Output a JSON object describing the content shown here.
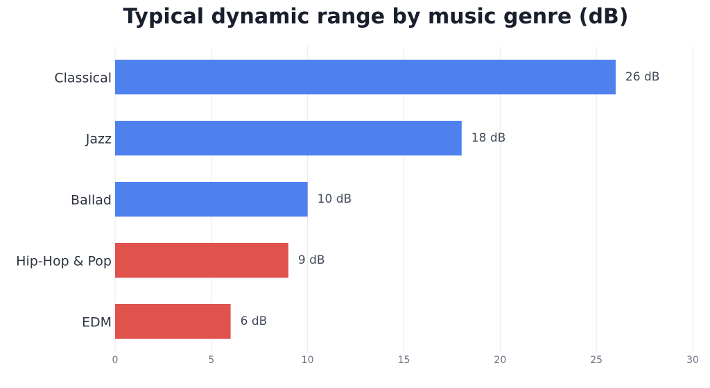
{
  "chart_data": {
    "type": "barh",
    "title": "Typical dynamic range by music genre (dB)",
    "categories": [
      "Classical",
      "Jazz",
      "Ballad",
      "Hip-Hop & Pop",
      "EDM"
    ],
    "values": [
      26,
      18,
      10,
      9,
      6
    ],
    "value_labels": [
      "26 dB",
      "18 dB",
      "10 dB",
      "9 dB",
      "6 dB"
    ],
    "colors": [
      "#4f81ee",
      "#4f81ee",
      "#4f81ee",
      "#e0524c",
      "#e0524c"
    ],
    "xlim": [
      0,
      30
    ],
    "xticks": [
      0,
      5,
      10,
      15,
      20,
      25,
      30
    ],
    "grid": true
  }
}
